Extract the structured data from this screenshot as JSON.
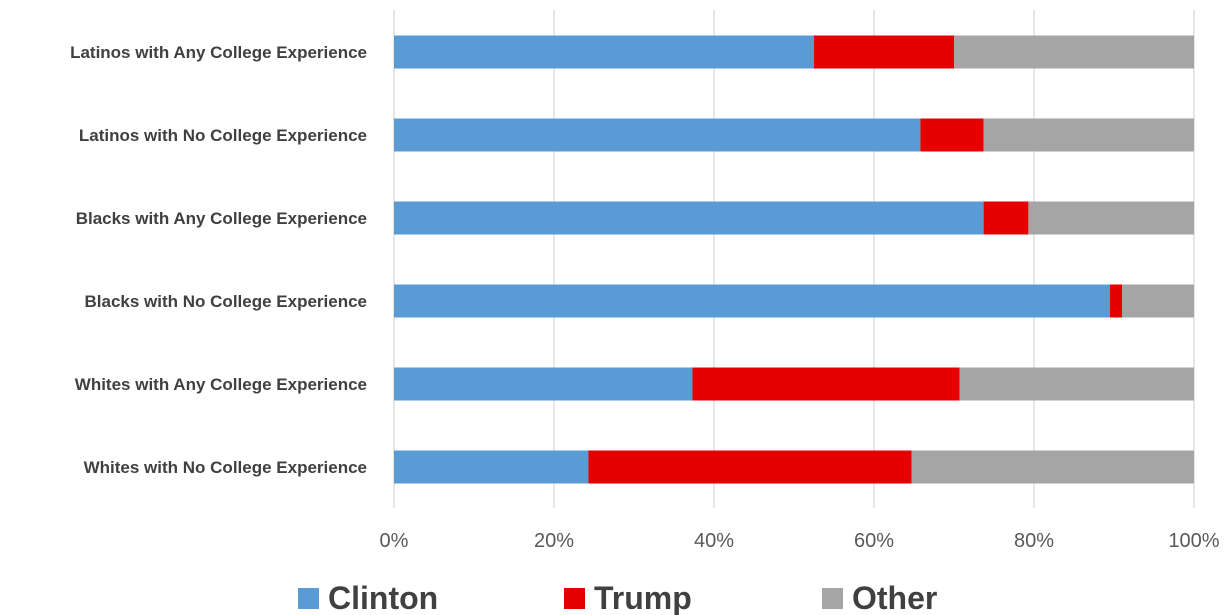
{
  "chart_data": {
    "type": "bar",
    "orientation": "horizontal",
    "stacked": "percent",
    "categories": [
      "Latinos with Any College Experience",
      "Latinos with No College Experience",
      "Blacks with Any College Experience",
      "Blacks with No College Experience",
      "Whites with Any College Experience",
      "Whites with No College Experience"
    ],
    "series": [
      {
        "name": "Clinton",
        "color": "#5B9BD5",
        "values": [
          52.5,
          65.8,
          73.7,
          89.5,
          37.3,
          24.3
        ]
      },
      {
        "name": "Trump",
        "color": "#E50000",
        "values": [
          17.5,
          7.9,
          5.6,
          1.5,
          33.4,
          40.4
        ]
      },
      {
        "name": "Other",
        "color": "#A5A5A5",
        "values": [
          30.0,
          26.3,
          20.7,
          9.0,
          29.3,
          35.3
        ]
      }
    ],
    "xlim": [
      0,
      100
    ],
    "xticks": [
      "0%",
      "20%",
      "40%",
      "60%",
      "80%",
      "100%"
    ],
    "grid": "vertical",
    "legend_position": "bottom"
  }
}
